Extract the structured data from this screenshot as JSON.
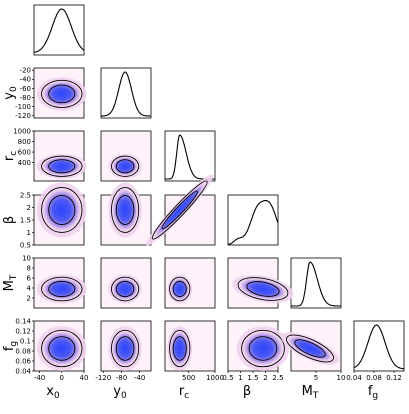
{
  "chart_data": {
    "type": "corner-plot",
    "description_free": true,
    "parameters": [
      {
        "key": "x0",
        "label_main": "x",
        "label_sub": "0",
        "range": [
          -50,
          40
        ],
        "ticks": [
          "-40",
          "0",
          "40"
        ],
        "tick_values": [
          -40,
          0,
          40
        ],
        "mean": 0,
        "sd": 17,
        "shape": "normal"
      },
      {
        "key": "y0",
        "label_main": "y",
        "label_sub": "0",
        "range": [
          -125,
          -15
        ],
        "ticks": [
          "-20",
          "-40",
          "-60",
          "-80",
          "-100",
          "-120"
        ],
        "tick_values": [
          -20,
          -40,
          -60,
          -80,
          -100,
          -120
        ],
        "x_ticks": [
          "-120",
          "-80",
          "-40"
        ],
        "x_tick_values": [
          -120,
          -80,
          -40
        ],
        "mean": -72,
        "sd": 14,
        "shape": "normal"
      },
      {
        "key": "rc",
        "label_main": "r",
        "label_sub": "c",
        "range": [
          50,
          1000
        ],
        "ticks": [
          "1000",
          "800",
          "600",
          "400"
        ],
        "tick_values": [
          1000,
          800,
          600,
          400
        ],
        "x_ticks": [
          "500",
          "1000"
        ],
        "x_tick_values": [
          500,
          1000
        ],
        "mean": 330,
        "sd": 90,
        "shape": "skew"
      },
      {
        "key": "beta",
        "label_main": "β",
        "label_sub": "",
        "range": [
          0.5,
          2.5
        ],
        "ticks": [
          "2.5",
          "2",
          "1.5",
          "1",
          "0.5"
        ],
        "tick_values": [
          2.5,
          2,
          1.5,
          1,
          0.5
        ],
        "x_ticks": [
          "0.5",
          "1",
          "1.5",
          "2",
          "2.5"
        ],
        "x_tick_values": [
          0.5,
          1,
          1.5,
          2,
          2.5
        ],
        "mean": 1.9,
        "sd": 0.45,
        "shape": "rising"
      },
      {
        "key": "MT",
        "label_main": "M",
        "label_sub": "T",
        "range": [
          0,
          10
        ],
        "ticks": [
          "10",
          "8",
          "6",
          "4",
          "2"
        ],
        "tick_values": [
          10,
          8,
          6,
          4,
          2
        ],
        "x_ticks": [
          "5",
          "10"
        ],
        "x_tick_values": [
          5,
          10
        ],
        "mean": 3.8,
        "sd": 1.1,
        "shape": "skew"
      },
      {
        "key": "fg",
        "label_main": "f",
        "label_sub": "g",
        "range": [
          0.04,
          0.14
        ],
        "ticks": [
          "0.14",
          "0.12",
          "0.1",
          "0.08",
          "0.06",
          "0.04"
        ],
        "tick_values": [
          0.14,
          0.12,
          0.1,
          0.08,
          0.06,
          0.04
        ],
        "x_ticks": [
          "0.04",
          "0.08",
          "0.12"
        ],
        "x_tick_values": [
          0.04,
          0.08,
          0.12
        ],
        "mean": 0.085,
        "sd": 0.017,
        "shape": "normal"
      }
    ],
    "correlations": {
      "rc|beta": 0.85,
      "MT|fg": -0.45,
      "beta|MT": -0.2
    },
    "colors": {
      "inner": "#3a4dff",
      "mid": "#9a86e8",
      "outer": "#f0d6ee",
      "background": "#fff2fb",
      "contour": "#000000"
    },
    "grid": false
  }
}
